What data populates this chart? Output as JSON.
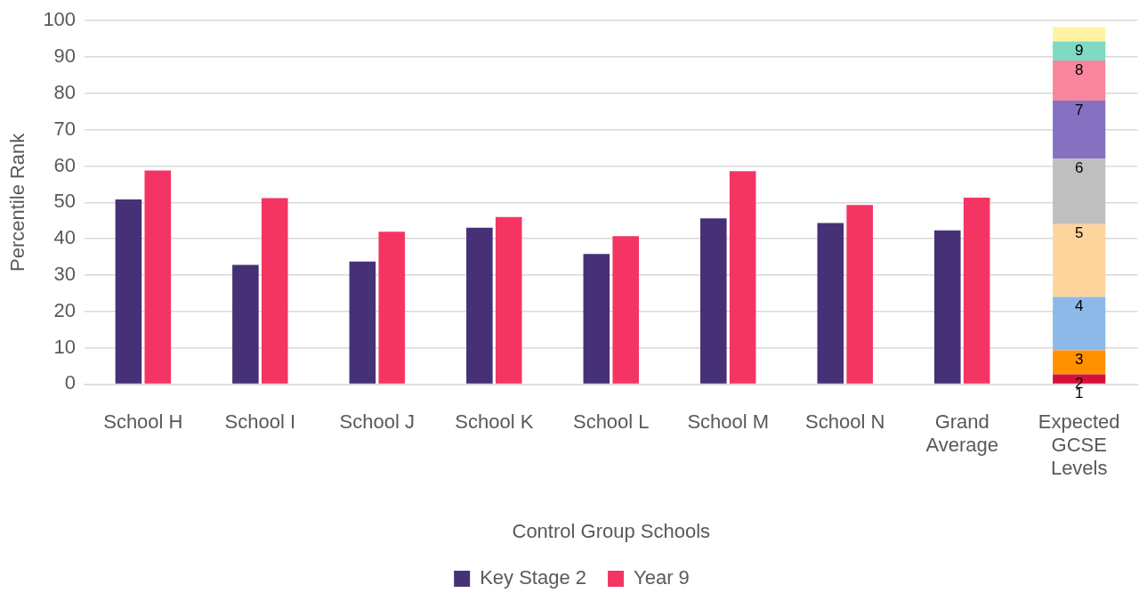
{
  "chart_data": {
    "type": "bar",
    "xlabel": "Control Group Schools",
    "ylabel": "Percentile Rank",
    "categories": [
      "School H",
      "School I",
      "School J",
      "School K",
      "School L",
      "School M",
      "School N",
      "Grand Average",
      "Expected GCSE Levels"
    ],
    "ylim": [
      0,
      100
    ],
    "yticks": [
      0,
      10,
      20,
      30,
      40,
      50,
      60,
      70,
      80,
      90,
      100
    ],
    "grid": "y",
    "legend": "bottom",
    "series": [
      {
        "name": "Key Stage 2",
        "color": "#463176",
        "values": [
          50.8,
          32.8,
          33.7,
          43,
          35.8,
          45.6,
          44.3,
          42.3,
          null
        ]
      },
      {
        "name": "Year 9",
        "color": "#f43563",
        "values": [
          58.8,
          51.2,
          41.9,
          46,
          40.7,
          58.6,
          49.3,
          51.3,
          null
        ]
      },
      {
        "name": "1",
        "color": "#d50f3a",
        "base": [
          null,
          null,
          null,
          null,
          null,
          null,
          null,
          null,
          0
        ],
        "values": [
          null,
          null,
          null,
          null,
          null,
          null,
          null,
          null,
          2.7
        ]
      },
      {
        "name": "2",
        "color": "#ff9100",
        "base": [
          null,
          null,
          null,
          null,
          null,
          null,
          null,
          null,
          2.7
        ],
        "values": [
          null,
          null,
          null,
          null,
          null,
          null,
          null,
          null,
          6.6
        ]
      },
      {
        "name": "3",
        "color": "#8db9e8",
        "base": [
          null,
          null,
          null,
          null,
          null,
          null,
          null,
          null,
          9.3
        ],
        "values": [
          null,
          null,
          null,
          null,
          null,
          null,
          null,
          null,
          14.7
        ]
      },
      {
        "name": "4",
        "color": "#fdd49c",
        "base": [
          null,
          null,
          null,
          null,
          null,
          null,
          null,
          null,
          24
        ],
        "values": [
          null,
          null,
          null,
          null,
          null,
          null,
          null,
          null,
          20
        ]
      },
      {
        "name": "5",
        "color": "#bfbfbf",
        "base": [
          null,
          null,
          null,
          null,
          null,
          null,
          null,
          null,
          44
        ],
        "values": [
          null,
          null,
          null,
          null,
          null,
          null,
          null,
          null,
          18
        ]
      },
      {
        "name": "6",
        "color": "#8670c2",
        "base": [
          null,
          null,
          null,
          null,
          null,
          null,
          null,
          null,
          62
        ],
        "values": [
          null,
          null,
          null,
          null,
          null,
          null,
          null,
          null,
          16
        ]
      },
      {
        "name": "7",
        "color": "#f8869c",
        "base": [
          null,
          null,
          null,
          null,
          null,
          null,
          null,
          null,
          78
        ],
        "values": [
          null,
          null,
          null,
          null,
          null,
          null,
          null,
          null,
          11
        ]
      },
      {
        "name": "8",
        "color": "#7fdac4",
        "base": [
          null,
          null,
          null,
          null,
          null,
          null,
          null,
          null,
          89
        ],
        "values": [
          null,
          null,
          null,
          null,
          null,
          null,
          null,
          null,
          5.3
        ]
      },
      {
        "name": "9",
        "color": "#fff3a3",
        "base": [
          null,
          null,
          null,
          null,
          null,
          null,
          null,
          null,
          94.3
        ],
        "values": [
          null,
          null,
          null,
          null,
          null,
          null,
          null,
          null,
          3.9
        ]
      }
    ]
  }
}
